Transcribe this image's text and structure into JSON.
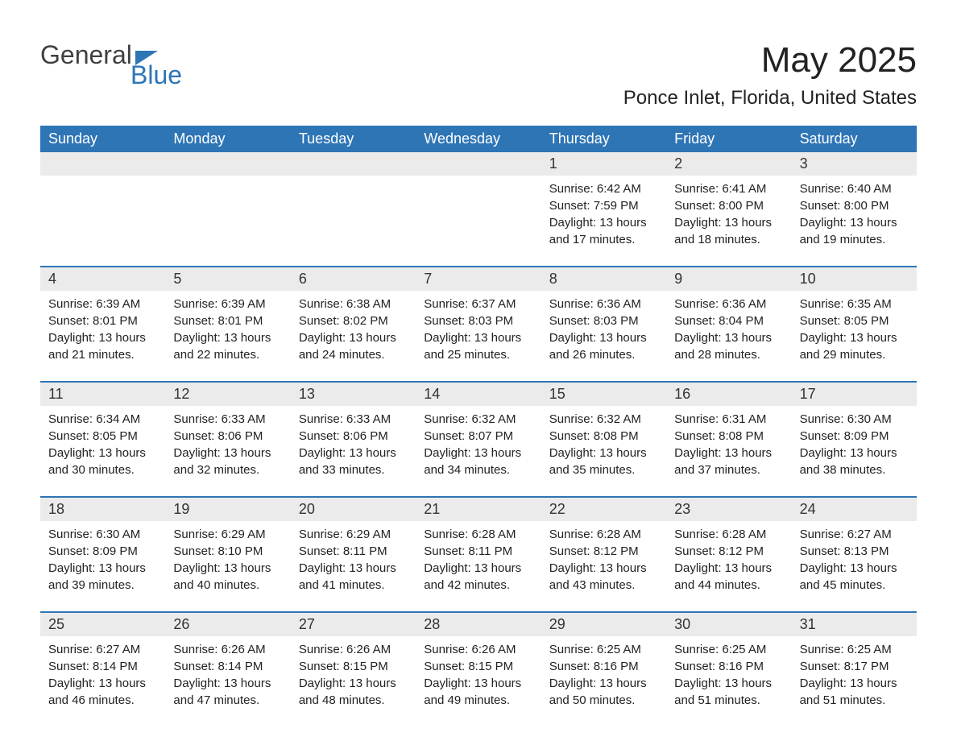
{
  "logo": {
    "text_general": "General",
    "text_blue": "Blue"
  },
  "header": {
    "title": "May 2025",
    "location": "Ponce Inlet, Florida, United States"
  },
  "colors": {
    "header_bg": "#2e75b6",
    "header_text": "#ffffff",
    "day_number_bg": "#ebebeb",
    "border": "#2e75b6",
    "text": "#222222",
    "logo_gray": "#404040",
    "logo_blue": "#2e75b6",
    "background": "#ffffff"
  },
  "typography": {
    "title_fontsize": 44,
    "location_fontsize": 24,
    "dayheader_fontsize": 18,
    "daynumber_fontsize": 18,
    "content_fontsize": 15
  },
  "days_of_week": [
    "Sunday",
    "Monday",
    "Tuesday",
    "Wednesday",
    "Thursday",
    "Friday",
    "Saturday"
  ],
  "weeks": [
    {
      "numbers": [
        "",
        "",
        "",
        "",
        "1",
        "2",
        "3"
      ],
      "cells": [
        {
          "sunrise": "",
          "sunset": "",
          "daylight1": "",
          "daylight2": ""
        },
        {
          "sunrise": "",
          "sunset": "",
          "daylight1": "",
          "daylight2": ""
        },
        {
          "sunrise": "",
          "sunset": "",
          "daylight1": "",
          "daylight2": ""
        },
        {
          "sunrise": "",
          "sunset": "",
          "daylight1": "",
          "daylight2": ""
        },
        {
          "sunrise": "Sunrise: 6:42 AM",
          "sunset": "Sunset: 7:59 PM",
          "daylight1": "Daylight: 13 hours",
          "daylight2": "and 17 minutes."
        },
        {
          "sunrise": "Sunrise: 6:41 AM",
          "sunset": "Sunset: 8:00 PM",
          "daylight1": "Daylight: 13 hours",
          "daylight2": "and 18 minutes."
        },
        {
          "sunrise": "Sunrise: 6:40 AM",
          "sunset": "Sunset: 8:00 PM",
          "daylight1": "Daylight: 13 hours",
          "daylight2": "and 19 minutes."
        }
      ]
    },
    {
      "numbers": [
        "4",
        "5",
        "6",
        "7",
        "8",
        "9",
        "10"
      ],
      "cells": [
        {
          "sunrise": "Sunrise: 6:39 AM",
          "sunset": "Sunset: 8:01 PM",
          "daylight1": "Daylight: 13 hours",
          "daylight2": "and 21 minutes."
        },
        {
          "sunrise": "Sunrise: 6:39 AM",
          "sunset": "Sunset: 8:01 PM",
          "daylight1": "Daylight: 13 hours",
          "daylight2": "and 22 minutes."
        },
        {
          "sunrise": "Sunrise: 6:38 AM",
          "sunset": "Sunset: 8:02 PM",
          "daylight1": "Daylight: 13 hours",
          "daylight2": "and 24 minutes."
        },
        {
          "sunrise": "Sunrise: 6:37 AM",
          "sunset": "Sunset: 8:03 PM",
          "daylight1": "Daylight: 13 hours",
          "daylight2": "and 25 minutes."
        },
        {
          "sunrise": "Sunrise: 6:36 AM",
          "sunset": "Sunset: 8:03 PM",
          "daylight1": "Daylight: 13 hours",
          "daylight2": "and 26 minutes."
        },
        {
          "sunrise": "Sunrise: 6:36 AM",
          "sunset": "Sunset: 8:04 PM",
          "daylight1": "Daylight: 13 hours",
          "daylight2": "and 28 minutes."
        },
        {
          "sunrise": "Sunrise: 6:35 AM",
          "sunset": "Sunset: 8:05 PM",
          "daylight1": "Daylight: 13 hours",
          "daylight2": "and 29 minutes."
        }
      ]
    },
    {
      "numbers": [
        "11",
        "12",
        "13",
        "14",
        "15",
        "16",
        "17"
      ],
      "cells": [
        {
          "sunrise": "Sunrise: 6:34 AM",
          "sunset": "Sunset: 8:05 PM",
          "daylight1": "Daylight: 13 hours",
          "daylight2": "and 30 minutes."
        },
        {
          "sunrise": "Sunrise: 6:33 AM",
          "sunset": "Sunset: 8:06 PM",
          "daylight1": "Daylight: 13 hours",
          "daylight2": "and 32 minutes."
        },
        {
          "sunrise": "Sunrise: 6:33 AM",
          "sunset": "Sunset: 8:06 PM",
          "daylight1": "Daylight: 13 hours",
          "daylight2": "and 33 minutes."
        },
        {
          "sunrise": "Sunrise: 6:32 AM",
          "sunset": "Sunset: 8:07 PM",
          "daylight1": "Daylight: 13 hours",
          "daylight2": "and 34 minutes."
        },
        {
          "sunrise": "Sunrise: 6:32 AM",
          "sunset": "Sunset: 8:08 PM",
          "daylight1": "Daylight: 13 hours",
          "daylight2": "and 35 minutes."
        },
        {
          "sunrise": "Sunrise: 6:31 AM",
          "sunset": "Sunset: 8:08 PM",
          "daylight1": "Daylight: 13 hours",
          "daylight2": "and 37 minutes."
        },
        {
          "sunrise": "Sunrise: 6:30 AM",
          "sunset": "Sunset: 8:09 PM",
          "daylight1": "Daylight: 13 hours",
          "daylight2": "and 38 minutes."
        }
      ]
    },
    {
      "numbers": [
        "18",
        "19",
        "20",
        "21",
        "22",
        "23",
        "24"
      ],
      "cells": [
        {
          "sunrise": "Sunrise: 6:30 AM",
          "sunset": "Sunset: 8:09 PM",
          "daylight1": "Daylight: 13 hours",
          "daylight2": "and 39 minutes."
        },
        {
          "sunrise": "Sunrise: 6:29 AM",
          "sunset": "Sunset: 8:10 PM",
          "daylight1": "Daylight: 13 hours",
          "daylight2": "and 40 minutes."
        },
        {
          "sunrise": "Sunrise: 6:29 AM",
          "sunset": "Sunset: 8:11 PM",
          "daylight1": "Daylight: 13 hours",
          "daylight2": "and 41 minutes."
        },
        {
          "sunrise": "Sunrise: 6:28 AM",
          "sunset": "Sunset: 8:11 PM",
          "daylight1": "Daylight: 13 hours",
          "daylight2": "and 42 minutes."
        },
        {
          "sunrise": "Sunrise: 6:28 AM",
          "sunset": "Sunset: 8:12 PM",
          "daylight1": "Daylight: 13 hours",
          "daylight2": "and 43 minutes."
        },
        {
          "sunrise": "Sunrise: 6:28 AM",
          "sunset": "Sunset: 8:12 PM",
          "daylight1": "Daylight: 13 hours",
          "daylight2": "and 44 minutes."
        },
        {
          "sunrise": "Sunrise: 6:27 AM",
          "sunset": "Sunset: 8:13 PM",
          "daylight1": "Daylight: 13 hours",
          "daylight2": "and 45 minutes."
        }
      ]
    },
    {
      "numbers": [
        "25",
        "26",
        "27",
        "28",
        "29",
        "30",
        "31"
      ],
      "cells": [
        {
          "sunrise": "Sunrise: 6:27 AM",
          "sunset": "Sunset: 8:14 PM",
          "daylight1": "Daylight: 13 hours",
          "daylight2": "and 46 minutes."
        },
        {
          "sunrise": "Sunrise: 6:26 AM",
          "sunset": "Sunset: 8:14 PM",
          "daylight1": "Daylight: 13 hours",
          "daylight2": "and 47 minutes."
        },
        {
          "sunrise": "Sunrise: 6:26 AM",
          "sunset": "Sunset: 8:15 PM",
          "daylight1": "Daylight: 13 hours",
          "daylight2": "and 48 minutes."
        },
        {
          "sunrise": "Sunrise: 6:26 AM",
          "sunset": "Sunset: 8:15 PM",
          "daylight1": "Daylight: 13 hours",
          "daylight2": "and 49 minutes."
        },
        {
          "sunrise": "Sunrise: 6:25 AM",
          "sunset": "Sunset: 8:16 PM",
          "daylight1": "Daylight: 13 hours",
          "daylight2": "and 50 minutes."
        },
        {
          "sunrise": "Sunrise: 6:25 AM",
          "sunset": "Sunset: 8:16 PM",
          "daylight1": "Daylight: 13 hours",
          "daylight2": "and 51 minutes."
        },
        {
          "sunrise": "Sunrise: 6:25 AM",
          "sunset": "Sunset: 8:17 PM",
          "daylight1": "Daylight: 13 hours",
          "daylight2": "and 51 minutes."
        }
      ]
    }
  ]
}
